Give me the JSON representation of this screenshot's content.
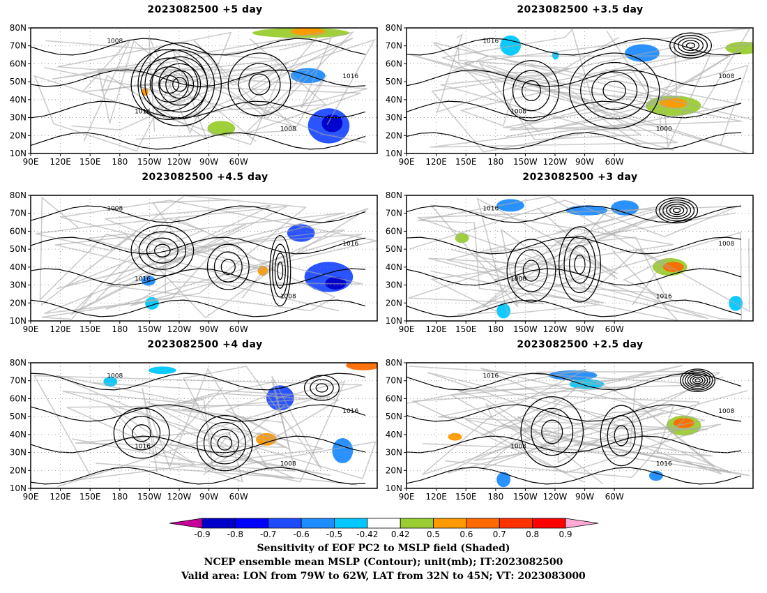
{
  "panels": [
    {
      "title": "2023082500  +5  day"
    },
    {
      "title": "2023082500  +3.5  day"
    },
    {
      "title": "2023082500  +4.5  day"
    },
    {
      "title": "2023082500  +3  day"
    },
    {
      "title": "2023082500  +4  day"
    },
    {
      "title": "2023082500  +2.5  day"
    }
  ],
  "map": {
    "lat_ticks": [
      "80N",
      "70N",
      "60N",
      "50N",
      "40N",
      "30N",
      "20N",
      "10N"
    ],
    "lon_ticks": [
      "90E",
      "120E",
      "150E",
      "180",
      "150W",
      "120W",
      "90W",
      "60W"
    ],
    "contour_label": "1008",
    "contour_label_b": "1016",
    "contour_label_c": "1000"
  },
  "colorbar": {
    "labels": [
      "-0.9",
      "-0.8",
      "-0.7",
      "-0.6",
      "-0.5",
      "-0.42",
      "0.42",
      "0.5",
      "0.6",
      "0.7",
      "0.8",
      "0.9"
    ],
    "colors": [
      "#c8009a",
      "#0000c8",
      "#0000ff",
      "#1e4bff",
      "#1e8cff",
      "#00c8ff",
      "#ffffff",
      "#9acd32",
      "#ff9900",
      "#ff6a00",
      "#ff3300",
      "#ff0000",
      "#ffaad4"
    ]
  },
  "caption": {
    "line1": "Sensitivity of EOF PC2 to MSLP field (Shaded)",
    "line2": "NCEP ensemble mean MSLP (Contour); unit(mb); IT:2023082500",
    "line3": "Valid area: LON from 79W to 62W, LAT from 32N to 45N; VT: 2023083000"
  }
}
